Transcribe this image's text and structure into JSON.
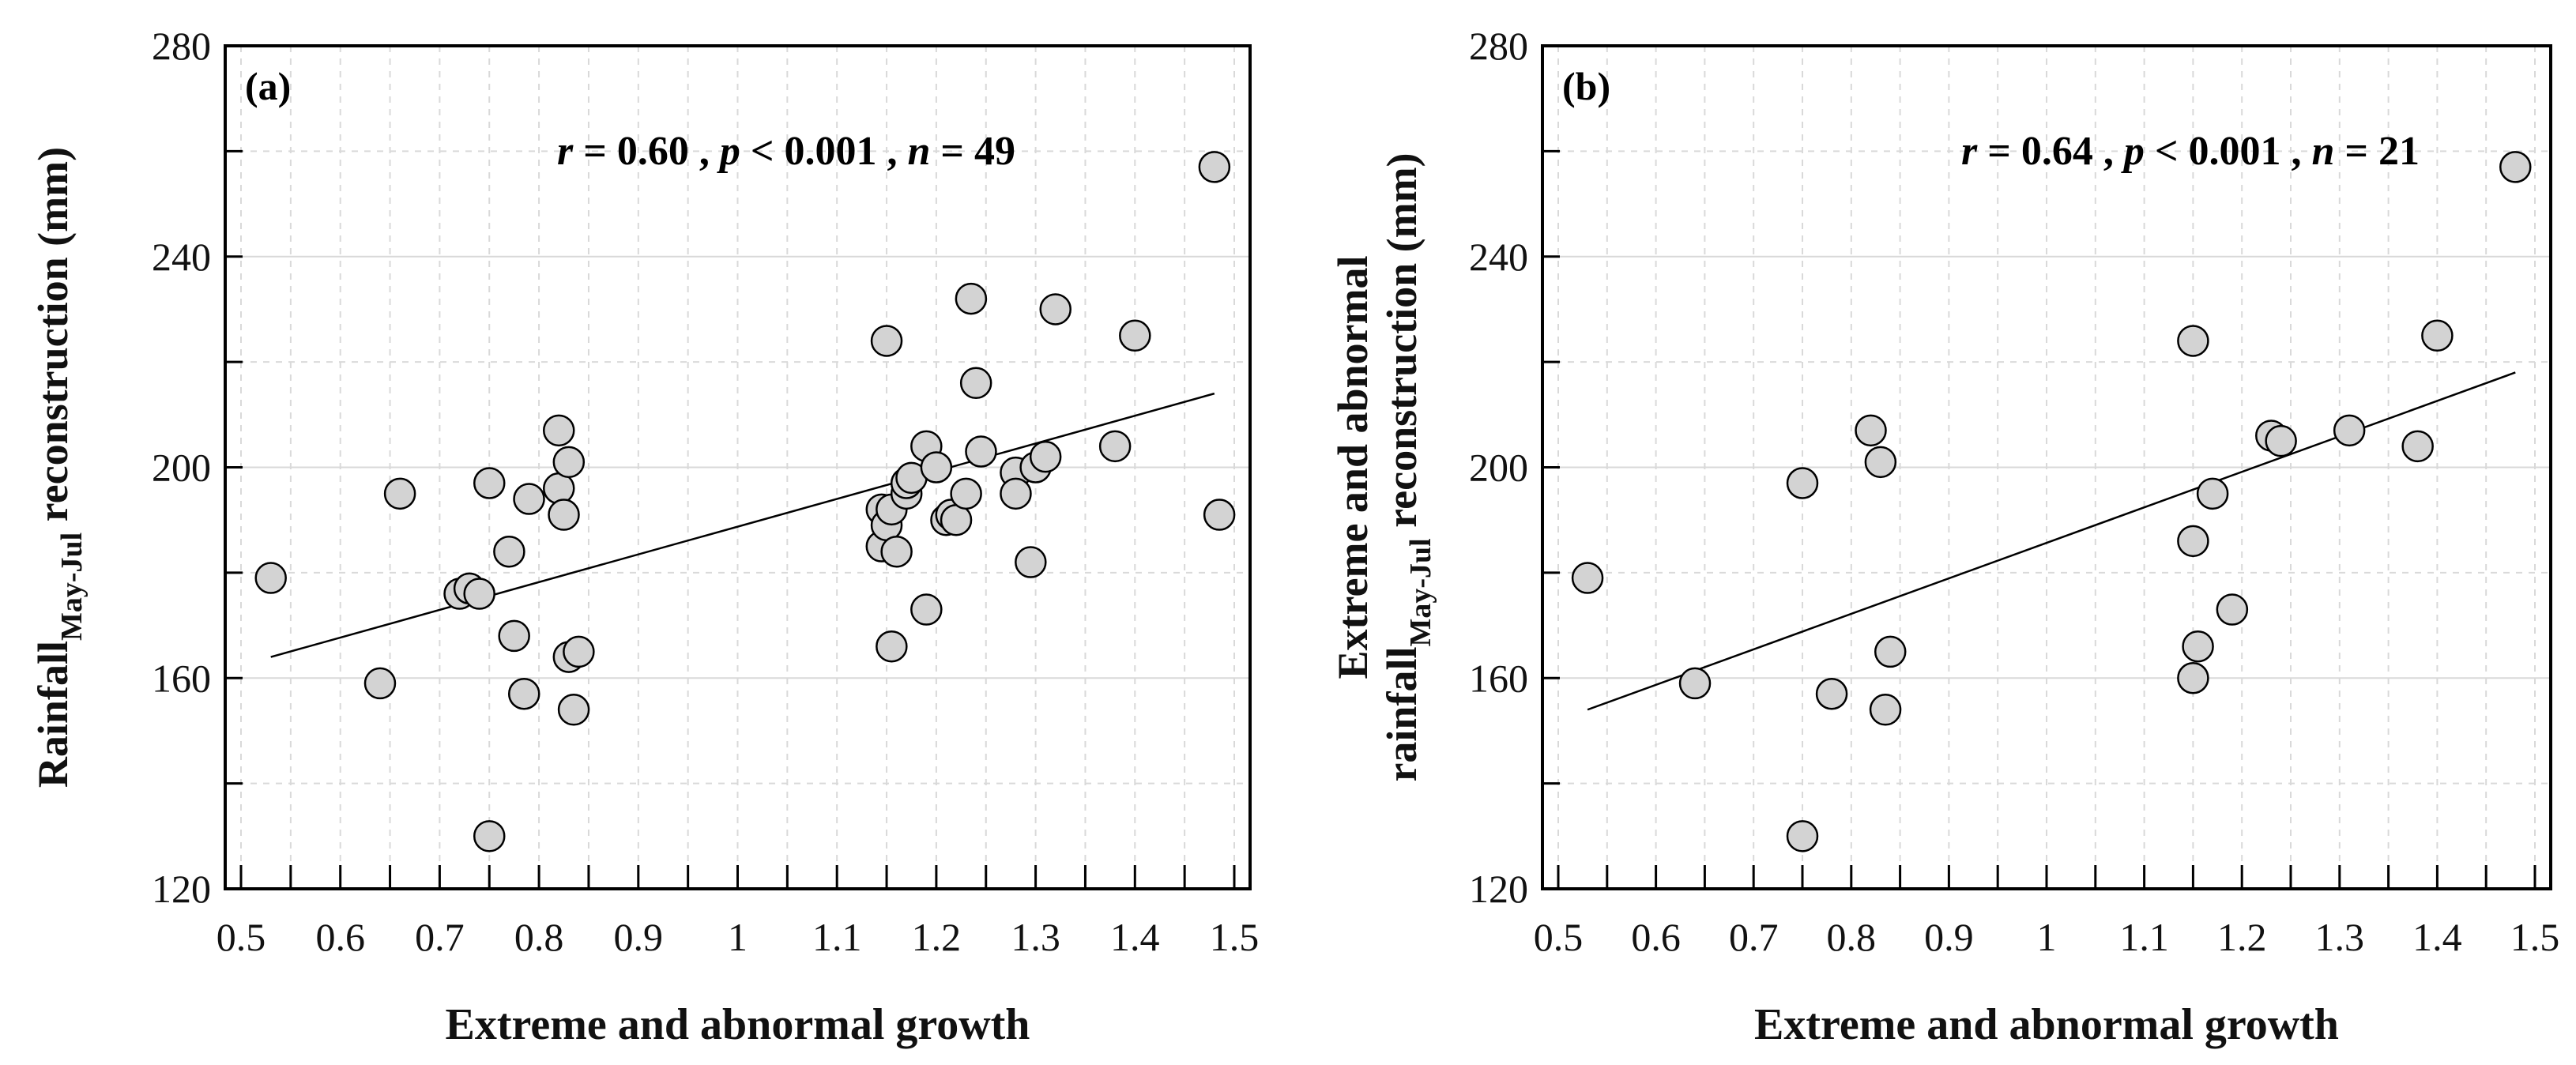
{
  "chart_data": [
    {
      "type": "scatter",
      "panel_label": "(a)",
      "stat": {
        "r": "r",
        "r_val": " = 0.60 , ",
        "p": "p",
        "p_val": " < 0.001 , ",
        "n": "n",
        "n_val": " = 49"
      },
      "xlabel": "Extreme and abnormal growth",
      "ylabel_lines": [
        {
          "main": "Rainfall",
          "sub": "May-Jul",
          "rest": " reconstruction (mm)"
        }
      ],
      "xlim": [
        0.5,
        1.5
      ],
      "ylim": [
        120,
        280
      ],
      "xticks": [
        "0.5",
        "0.6",
        "0.7",
        "0.8",
        "0.9",
        "1",
        "1.1",
        "1.2",
        "1.3",
        "1.4",
        "1.5"
      ],
      "yticks": [
        "120",
        "160",
        "200",
        "240",
        "280"
      ],
      "grid": true,
      "fit_line": [
        [
          0.53,
          164
        ],
        [
          1.48,
          214
        ]
      ],
      "points": [
        [
          0.53,
          179
        ],
        [
          0.64,
          159
        ],
        [
          0.66,
          195
        ],
        [
          0.72,
          176
        ],
        [
          0.73,
          177
        ],
        [
          0.74,
          176
        ],
        [
          0.75,
          197
        ],
        [
          0.75,
          130
        ],
        [
          0.77,
          184
        ],
        [
          0.775,
          168
        ],
        [
          0.785,
          157
        ],
        [
          0.79,
          194
        ],
        [
          0.82,
          207
        ],
        [
          0.82,
          196
        ],
        [
          0.825,
          191
        ],
        [
          0.83,
          201
        ],
        [
          0.83,
          164
        ],
        [
          0.835,
          154
        ],
        [
          0.84,
          165
        ],
        [
          1.145,
          192
        ],
        [
          1.145,
          185
        ],
        [
          1.15,
          224
        ],
        [
          1.15,
          189
        ],
        [
          1.155,
          192
        ],
        [
          1.155,
          166
        ],
        [
          1.16,
          184
        ],
        [
          1.17,
          195
        ],
        [
          1.17,
          197
        ],
        [
          1.175,
          198
        ],
        [
          1.19,
          204
        ],
        [
          1.19,
          173
        ],
        [
          1.2,
          200
        ],
        [
          1.21,
          190
        ],
        [
          1.215,
          191
        ],
        [
          1.22,
          190
        ],
        [
          1.23,
          195
        ],
        [
          1.235,
          232
        ],
        [
          1.24,
          216
        ],
        [
          1.245,
          203
        ],
        [
          1.28,
          199
        ],
        [
          1.28,
          195
        ],
        [
          1.295,
          182
        ],
        [
          1.3,
          200
        ],
        [
          1.31,
          202
        ],
        [
          1.32,
          230
        ],
        [
          1.38,
          204
        ],
        [
          1.4,
          225
        ],
        [
          1.48,
          257
        ],
        [
          1.485,
          191
        ]
      ]
    },
    {
      "type": "scatter",
      "panel_label": "(b)",
      "stat": {
        "r": "r",
        "r_val": " = 0.64 , ",
        "p": "p",
        "p_val": " < 0.001 , ",
        "n": "n",
        "n_val": " = 21"
      },
      "xlabel": "Extreme and abnormal growth",
      "ylabel_lines": [
        {
          "main": "Extreme and abnormal",
          "sub": "",
          "rest": ""
        },
        {
          "main": "rainfall",
          "sub": "May-Jul",
          "rest": " reconstruction (mm)"
        }
      ],
      "xlim": [
        0.5,
        1.5
      ],
      "ylim": [
        120,
        280
      ],
      "xticks": [
        "0.5",
        "0.6",
        "0.7",
        "0.8",
        "0.9",
        "1",
        "1.1",
        "1.2",
        "1.3",
        "1.4",
        "1.5"
      ],
      "yticks": [
        "120",
        "160",
        "200",
        "240",
        "280"
      ],
      "grid": true,
      "fit_line": [
        [
          0.53,
          154
        ],
        [
          1.48,
          218
        ]
      ],
      "points": [
        [
          0.53,
          179
        ],
        [
          0.64,
          159
        ],
        [
          0.75,
          197
        ],
        [
          0.75,
          130
        ],
        [
          0.78,
          157
        ],
        [
          0.82,
          207
        ],
        [
          0.83,
          201
        ],
        [
          0.835,
          154
        ],
        [
          0.84,
          165
        ],
        [
          1.15,
          224
        ],
        [
          1.15,
          186
        ],
        [
          1.155,
          166
        ],
        [
          1.15,
          160
        ],
        [
          1.17,
          195
        ],
        [
          1.19,
          173
        ],
        [
          1.23,
          206
        ],
        [
          1.24,
          205
        ],
        [
          1.31,
          207
        ],
        [
          1.38,
          204
        ],
        [
          1.4,
          225
        ],
        [
          1.48,
          257
        ]
      ]
    }
  ],
  "colors": {
    "marker_fill": "#d3d3d3",
    "marker_stroke": "#000000",
    "grid": "#d9d9d9"
  }
}
